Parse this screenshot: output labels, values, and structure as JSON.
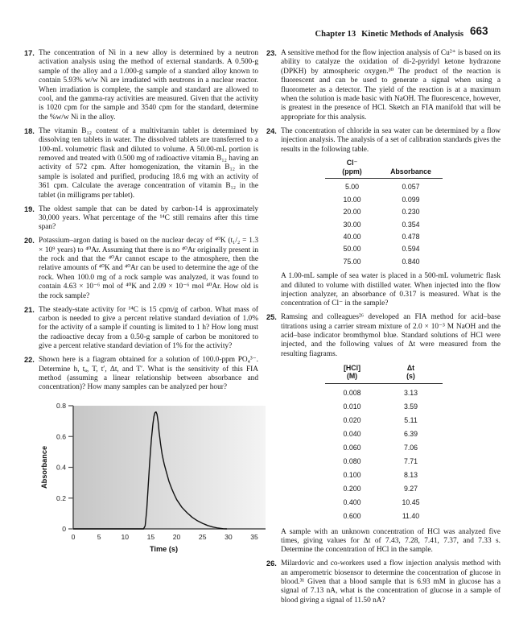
{
  "header": {
    "chapter_label": "Chapter 13",
    "chapter_title": "Kinetic Methods of Analysis",
    "page_number": "663"
  },
  "columns": {
    "left": [
      {
        "type": "problem",
        "number": "17.",
        "text": "The concentration of Ni in a new alloy is determined by a neutron activation analysis using the method of external standards. A 0.500-g sample of the alloy and a 1.000-g sample of a standard alloy known to contain 5.93% w/w Ni are irradiated with neutrons in a nuclear reactor. When irradiation is complete, the sample and standard are allowed to cool, and the gamma-ray activities are measured. Given that the activity is 1020 cpm for the sample and 3540 cpm for the standard, determine the %w/w Ni in the alloy."
      },
      {
        "type": "problem",
        "number": "18.",
        "text": "The vitamin B₁₂ content of a multivitamin tablet is determined by dissolving ten tablets in water. The dissolved tablets are transferred to a 100-mL volumetric flask and diluted to volume. A 50.00-mL portion is removed and treated with 0.500 mg of radioactive vitamin B₁₂ having an activity of 572 cpm. After homogenization, the vitamin B₁₂ in the sample is isolated and purified, producing 18.6 mg with an activity of 361 cpm. Calculate the average concentration of vitamin B₁₂ in the tablet (in milligrams per tablet)."
      },
      {
        "type": "problem",
        "number": "19.",
        "text": "The oldest sample that can be dated by carbon-14 is approximately 30,000 years. What percentage of the ¹⁴C still remains after this time span?"
      },
      {
        "type": "problem",
        "number": "20.",
        "text": "Potassium–argon dating is based on the nuclear decay of ⁴⁰K (t₁/₂ = 1.3 × 10⁹ years) to ⁴⁰Ar. Assuming that there is no ⁴⁰Ar originally present in the rock and that the ⁴⁰Ar cannot escape to the atmosphere, then the relative amounts of ⁴⁰K and ⁴⁰Ar can be used to determine the age of the rock. When 100.0 mg of a rock sample was analyzed, it was found to contain 4.63 × 10⁻⁶ mol of ⁴⁰K and 2.09 × 10⁻⁶ mol ⁴⁰Ar. How old is the rock sample?"
      },
      {
        "type": "problem",
        "number": "21.",
        "text": "The steady-state activity for ¹⁴C is 15 cpm/g of carbon. What mass of carbon is needed to give a percent relative standard deviation of 1.0% for the activity of a sample if counting is limited to 1 h? How long must the radioactive decay from a 0.50-g sample of carbon be monitored to give a percent relative standard deviation of 1% for the activity?"
      },
      {
        "type": "problem",
        "number": "22.",
        "text": "Shown here is a fiagram obtained for a solution of 100.0-ppm PO₄³⁻. Determine h, tₐ, T, t′, Δt, and T′. What is the sensitivity of this FIA method (assuming a linear relationship between absorbance and concentration)? How many samples can be analyzed per hour?"
      },
      {
        "type": "chart"
      }
    ],
    "right": [
      {
        "type": "problem",
        "number": "23.",
        "text": "A sensitive method for the flow injection analysis of Cu²⁺ is based on its ability to catalyze the oxidation of di-2-pyridyl ketone hydrazone (DPKH) by atmospheric oxygen.³⁰ The product of the reaction is fluorescent and can be used to generate a signal when using a fluorometer as a detector. The yield of the reaction is at a maximum when the solution is made basic with NaOH. The fluorescence, however, is greatest in the presence of HCl. Sketch an FIA manifold that will be appropriate for this analysis."
      },
      {
        "type": "problem",
        "number": "24.",
        "text": "The concentration of chloride in sea water can be determined by a flow injection analysis. The analysis of a set of calibration standards gives the results in the following table."
      },
      {
        "type": "table",
        "table": "chloride"
      },
      {
        "type": "note",
        "text": "A 1.00-mL sample of sea water is placed in a 500-mL volumetric flask and diluted to volume with distilled water. When injected into the flow injection analyzer, an absorbance of 0.317 is measured. What is the concentration of Cl⁻ in the sample?"
      },
      {
        "type": "problem",
        "number": "25.",
        "text": "Ramsing and colleagues²⁶ developed an FIA method for acid–base titrations using a carrier stream mixture of 2.0 × 10⁻³ M NaOH and the acid–base indicator bromthymol blue. Standard solutions of HCl were injected, and the following values of Δt were measured from the resulting fiagrams."
      },
      {
        "type": "table",
        "table": "hcl"
      },
      {
        "type": "note",
        "text": "A sample with an unknown concentration of HCl was analyzed five times, giving values for Δt of 7.43, 7.28, 7.41, 7.37, and 7.33 s. Determine the concentration of HCl in the sample."
      },
      {
        "type": "problem",
        "number": "26.",
        "text": "Milardovic and co-workers used a flow injection analysis method with an amperometric biosensor to determine the concentration of glucose in blood.³¹ Given that a blood sample that is 6.93 mM in glucose has a signal of 7.13 nA, what is the concentration of glucose in a sample of blood giving a signal of 11.50 nA?"
      }
    ]
  },
  "tables": {
    "chloride": {
      "name": "chloride-calibration-table",
      "headers": [
        [
          "Cl⁻",
          "(ppm)"
        ],
        [
          "Absorbance"
        ]
      ],
      "rows": [
        [
          "5.00",
          "0.057"
        ],
        [
          "10.00",
          "0.099"
        ],
        [
          "20.00",
          "0.230"
        ],
        [
          "30.00",
          "0.354"
        ],
        [
          "40.00",
          "0.478"
        ],
        [
          "50.00",
          "0.594"
        ],
        [
          "75.00",
          "0.840"
        ]
      ]
    },
    "hcl": {
      "name": "hcl-delta-t-table",
      "headers": [
        [
          "[HCl]",
          "(M)"
        ],
        [
          "Δt",
          "(s)"
        ]
      ],
      "rows": [
        [
          "0.008",
          "3.13"
        ],
        [
          "0.010",
          "3.59"
        ],
        [
          "0.020",
          "5.11"
        ],
        [
          "0.040",
          "6.39"
        ],
        [
          "0.060",
          "7.06"
        ],
        [
          "0.080",
          "7.71"
        ],
        [
          "0.100",
          "8.13"
        ],
        [
          "0.200",
          "9.27"
        ],
        [
          "0.400",
          "10.45"
        ],
        [
          "0.600",
          "11.40"
        ]
      ]
    }
  },
  "chart_data": {
    "type": "line",
    "title": "",
    "xlabel": "Time (s)",
    "ylabel": "Absorbance",
    "xlim": [
      0,
      35
    ],
    "ylim": [
      0,
      0.8
    ],
    "xticks": [
      0,
      5,
      10,
      15,
      20,
      25,
      30,
      35
    ],
    "yticks": [
      0,
      0.2,
      0.4,
      0.6,
      0.8
    ],
    "grid": false,
    "legend": "none",
    "bg_gradient": [
      "#c6c6c6",
      "#f4f4f4"
    ],
    "axis_color": "#4d4d4d",
    "curve_color": "#111111",
    "series": [
      {
        "name": "FIA fiagram, 100.0-ppm PO4 injection",
        "x": [
          0,
          5,
          10,
          13.6,
          13.9,
          14.2,
          14.5,
          14.8,
          15.1,
          15.4,
          15.6,
          15.8,
          16,
          16.2,
          16.4,
          16.6,
          16.9,
          17.2,
          17.6,
          18,
          18.5,
          19,
          19.5,
          20,
          21,
          22,
          23,
          24,
          25,
          26,
          27,
          28,
          29,
          29.7
        ],
        "y": [
          0,
          0,
          0,
          0,
          0.02,
          0.12,
          0.28,
          0.44,
          0.58,
          0.68,
          0.73,
          0.755,
          0.76,
          0.745,
          0.7,
          0.63,
          0.55,
          0.48,
          0.42,
          0.37,
          0.31,
          0.265,
          0.225,
          0.19,
          0.14,
          0.105,
          0.075,
          0.053,
          0.036,
          0.022,
          0.012,
          0.005,
          0.001,
          0
        ]
      }
    ]
  }
}
